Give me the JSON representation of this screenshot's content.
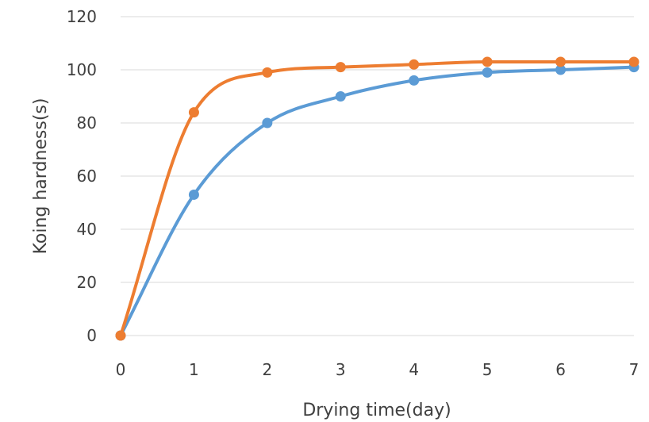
{
  "chart_data": {
    "type": "line",
    "xlabel": "Drying time(day)",
    "ylabel": "Koing hardness(s)",
    "x": [
      0,
      1,
      2,
      3,
      4,
      5,
      6,
      7
    ],
    "xlim": [
      0,
      7
    ],
    "ylim": [
      0,
      120
    ],
    "yticks": [
      0,
      20,
      40,
      60,
      80,
      100,
      120
    ],
    "grid": true,
    "smooth": true,
    "series": [
      {
        "values": [
          0,
          53,
          80,
          90,
          96,
          99,
          100,
          101
        ],
        "color": "#5B9BD5"
      },
      {
        "values": [
          0,
          84,
          99,
          101,
          102,
          103,
          103,
          103
        ],
        "color": "#ED7D31"
      }
    ]
  }
}
